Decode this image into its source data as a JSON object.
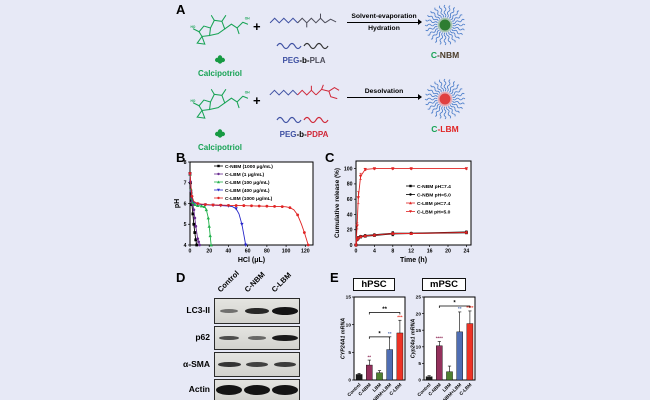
{
  "page": {
    "background": "#e7e9f6"
  },
  "panelA": {
    "label": "A",
    "colors": {
      "calcipotriol": "#18a355",
      "peg": "#3f51a3",
      "pla": "#4d4d5a",
      "pdpa": "#d02738",
      "corona": "#4a7cc9",
      "core_nbm": "#2e7d32",
      "core_lbm": "#e04040",
      "product_nbm": "#4a3b28",
      "product_lbm": "#e02626"
    },
    "structure_labels": {
      "ho": "HO",
      "oh": "OH"
    },
    "rows": [
      {
        "reactant": "Calcipotriol",
        "plus": "+",
        "peg": "PEG",
        "b": "-b-",
        "block": "PLA",
        "arrow_line1": "Solvent-evaporation",
        "arrow_line2": "Hydration",
        "product_c": "C",
        "product_rest": "-NBM"
      },
      {
        "reactant": "Calcipotriol",
        "plus": "+",
        "peg": "PEG",
        "b": "-b-",
        "block": "PDPA",
        "arrow_line1": "Desolvation",
        "arrow_line2": "",
        "product_c": "C",
        "product_rest": "-LBM"
      }
    ]
  },
  "panelB": {
    "label": "B"
  },
  "panelC": {
    "label": "C"
  },
  "panelD": {
    "label": "D",
    "columns": [
      "Control",
      "C-NBM",
      "C-LBM"
    ],
    "rows": [
      {
        "name": "LC3-II",
        "bands": [
          0.3,
          0.85,
          1.0
        ]
      },
      {
        "name": "p62",
        "bands": [
          0.55,
          0.35,
          0.95
        ]
      },
      {
        "name": "α-SMA",
        "bands": [
          0.75,
          0.65,
          0.7
        ]
      },
      {
        "name": "Actin",
        "bands": [
          1.0,
          1.0,
          1.0
        ]
      }
    ]
  },
  "panelE": {
    "label": "E"
  },
  "chart_data": [
    {
      "id": "B",
      "type": "line",
      "xlabel": "HCl (μL)",
      "ylabel": "pH",
      "xlim": [
        0,
        128
      ],
      "ylim": [
        4,
        8
      ],
      "xticks": [
        0,
        20,
        40,
        60,
        80,
        100,
        120
      ],
      "yticks": [
        4,
        5,
        6,
        7,
        8
      ],
      "legend_position": "inside-top-right",
      "series": [
        {
          "name": "C-NBM (1000 μg/mL)",
          "color": "#000000",
          "marker": "square",
          "marker_every": 1,
          "x": [
            0,
            0.5,
            1,
            1.5,
            2,
            3,
            4,
            5,
            6,
            7
          ],
          "y": [
            7.45,
            7.0,
            6.5,
            6.15,
            5.95,
            5.5,
            5.0,
            4.6,
            4.25,
            4.0
          ]
        },
        {
          "name": "C-LBM (1 μg/mL)",
          "color": "#6a2d91",
          "marker": "circle",
          "marker_every": 1,
          "x": [
            0,
            0.5,
            1,
            2,
            3,
            4,
            5,
            6,
            8,
            9,
            10
          ],
          "y": [
            7.4,
            7.05,
            6.6,
            6.1,
            5.95,
            5.7,
            5.3,
            4.9,
            4.3,
            4.15,
            4.0
          ]
        },
        {
          "name": "C-LBM (100 μg/mL)",
          "color": "#22b14c",
          "marker": "triangle",
          "marker_every": 1,
          "x": [
            0,
            1,
            2,
            3,
            5,
            8,
            12,
            15,
            17,
            19,
            20,
            21,
            22
          ],
          "y": [
            7.4,
            6.7,
            6.25,
            6.05,
            5.95,
            5.9,
            5.88,
            5.85,
            5.7,
            5.3,
            4.9,
            4.45,
            4.0
          ]
        },
        {
          "name": "C-LBM (400 μg/mL)",
          "color": "#2626c9",
          "marker": "triangle-down",
          "marker_every": 2,
          "x": [
            0,
            1,
            2,
            4,
            8,
            12,
            16,
            20,
            24,
            28,
            32,
            36,
            40,
            44,
            48,
            51,
            54,
            56,
            58
          ],
          "y": [
            7.4,
            6.75,
            6.3,
            6.05,
            5.98,
            5.95,
            5.94,
            5.93,
            5.92,
            5.91,
            5.9,
            5.89,
            5.88,
            5.85,
            5.75,
            5.5,
            5.0,
            4.5,
            4.0
          ]
        },
        {
          "name": "C-LBM (1000 μg/mL)",
          "color": "#e02424",
          "marker": "circle",
          "marker_every": 2,
          "x": [
            0,
            1,
            2,
            4,
            8,
            12,
            16,
            20,
            24,
            28,
            32,
            36,
            40,
            44,
            48,
            52,
            56,
            60,
            64,
            68,
            72,
            76,
            80,
            84,
            88,
            92,
            96,
            100,
            104,
            108,
            112,
            116,
            119,
            121,
            123
          ],
          "y": [
            7.45,
            6.8,
            6.35,
            6.1,
            6.0,
            5.97,
            5.95,
            5.94,
            5.93,
            5.93,
            5.92,
            5.92,
            5.91,
            5.91,
            5.9,
            5.9,
            5.9,
            5.89,
            5.89,
            5.88,
            5.88,
            5.87,
            5.87,
            5.86,
            5.86,
            5.85,
            5.85,
            5.84,
            5.8,
            5.7,
            5.45,
            5.0,
            4.6,
            4.3,
            4.0
          ]
        }
      ]
    },
    {
      "id": "C",
      "type": "line",
      "xlabel": "Time (h)",
      "ylabel": "Cumulative release (%)",
      "xlim": [
        0,
        25
      ],
      "ylim": [
        0,
        110
      ],
      "xticks": [
        0,
        4,
        8,
        12,
        16,
        20,
        24
      ],
      "yticks": [
        0,
        20,
        40,
        60,
        80,
        100
      ],
      "legend_position": "inside-middle-right",
      "series": [
        {
          "name": "C-NBM pH=7.4",
          "color": "#000000",
          "marker": "square",
          "marker_every": 1,
          "x": [
            0,
            0.25,
            0.5,
            1,
            2,
            4,
            8,
            12,
            24
          ],
          "y": [
            0,
            7,
            9,
            10.5,
            11.5,
            12.5,
            14.5,
            15,
            16
          ],
          "yerr": [
            0,
            0.8,
            0.8,
            0.8,
            0.8,
            1,
            2.5,
            1.2,
            1.2
          ]
        },
        {
          "name": "C-NBM pH=5.0",
          "color": "#000000",
          "marker": "circle",
          "marker_every": 1,
          "x": [
            0,
            0.25,
            0.5,
            1,
            2,
            4,
            8,
            12,
            24
          ],
          "y": [
            0,
            8,
            10,
            11.5,
            12.5,
            13.5,
            15.5,
            15.5,
            17
          ],
          "yerr": [
            0,
            0.8,
            0.8,
            0.8,
            0.8,
            1,
            2,
            1.2,
            1.5
          ]
        },
        {
          "name": "C-LBM pH=7.4",
          "color": "#e02424",
          "marker": "triangle",
          "marker_every": 1,
          "x": [
            0,
            0.25,
            0.5,
            1,
            2,
            4,
            8,
            12,
            24
          ],
          "y": [
            0,
            7.5,
            9.5,
            11,
            12,
            13,
            15,
            15,
            16.5
          ],
          "yerr": [
            0,
            0.8,
            0.8,
            0.8,
            0.8,
            1,
            1.5,
            1,
            1.2
          ]
        },
        {
          "name": "C-LBM pH=5.0",
          "color": "#e02424",
          "marker": "triangle-down",
          "marker_every": 1,
          "x": [
            0,
            0.25,
            0.5,
            1,
            2,
            4,
            8,
            12,
            24
          ],
          "y": [
            0,
            25,
            62,
            90,
            99,
            100,
            100,
            100,
            100
          ],
          "yerr": [
            0,
            4,
            8,
            4,
            1.5,
            1,
            1,
            1,
            1
          ]
        }
      ]
    },
    {
      "id": "hPSC",
      "type": "bar",
      "title": "hPSC",
      "ylabel": "CYP24A1 mRNA",
      "categories": [
        "Control",
        "C-NBM",
        "LBM",
        "C-NBM+LBM",
        "C-LBM"
      ],
      "values": [
        1.0,
        2.7,
        1.3,
        5.5,
        8.5
      ],
      "errors": [
        0.2,
        0.9,
        0.4,
        2.3,
        2.3
      ],
      "bar_colors": [
        "#1b1b1b",
        "#94305c",
        "#4e8030",
        "#4f6eb3",
        "#ed3326"
      ],
      "stars": [
        "",
        "**",
        "",
        "**",
        "***"
      ],
      "ylim": [
        0,
        15
      ],
      "yticks": [
        0,
        5,
        10,
        15
      ],
      "brackets": [
        {
          "from": 1,
          "to": 3,
          "y": 7.8,
          "label": "*"
        },
        {
          "from": 1,
          "to": 4,
          "y": 12.2,
          "label": "**"
        }
      ]
    },
    {
      "id": "mPSC",
      "type": "bar",
      "title": "mPSC",
      "ylabel": "Cyp24a1 mRNA",
      "categories": [
        "Control",
        "C-NBM",
        "LBM",
        "C-NBM+LBM",
        "C-LBM"
      ],
      "values": [
        1.0,
        10.3,
        2.5,
        14.5,
        17.0
      ],
      "errors": [
        0.3,
        1.3,
        1.7,
        6.0,
        3.8
      ],
      "bar_colors": [
        "#1b1b1b",
        "#94305c",
        "#4e8030",
        "#4f6eb3",
        "#ed3326"
      ],
      "stars": [
        "",
        "****",
        "",
        "**",
        "****"
      ],
      "ylim": [
        0,
        25
      ],
      "yticks": [
        0,
        5,
        10,
        15,
        20,
        25
      ],
      "brackets": [
        {
          "from": 1,
          "to": 4,
          "y": 22.3,
          "label": "*"
        }
      ]
    }
  ]
}
